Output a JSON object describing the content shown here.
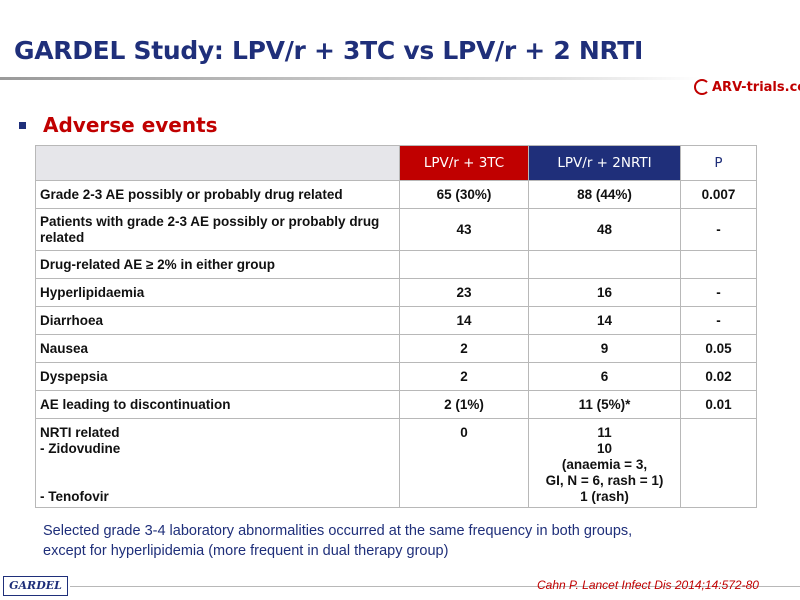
{
  "header": {
    "title": "GARDEL Study: LPV/r + 3TC vs LPV/r + 2 NRTI",
    "logo_text": "ARV-trials.com"
  },
  "section": {
    "heading": "Adverse events"
  },
  "table": {
    "columns": [
      "",
      "LPV/r + 3TC",
      "LPV/r + 2NRTI",
      "P"
    ],
    "header_colors": {
      "col1": "#c00000",
      "col2": "#1f2f7a",
      "p_text": "#1f2f7a"
    },
    "rows": [
      {
        "label": "Grade 2-3 AE possibly or probably drug related",
        "a": "65 (30%)",
        "b": "88 (44%)",
        "p": "0.007"
      },
      {
        "label": "Patients with grade 2-3 AE possibly or probably drug related",
        "a": "43",
        "b": "48",
        "p": "-"
      },
      {
        "label": "Drug-related AE ≥ 2% in either group",
        "a": "",
        "b": "",
        "p": ""
      },
      {
        "label": "Hyperlipidaemia",
        "a": "23",
        "b": "16",
        "p": "-"
      },
      {
        "label": "Diarrhoea",
        "a": "14",
        "b": "14",
        "p": "-"
      },
      {
        "label": "Nausea",
        "a": "2",
        "b": "9",
        "p": "0.05"
      },
      {
        "label": "Dyspepsia",
        "a": "2",
        "b": "6",
        "p": "0.02"
      },
      {
        "label": "AE leading to discontinuation",
        "a": "2 (1%)",
        "b": "11 (5%)*",
        "p": "0.01"
      }
    ],
    "last_row": {
      "label_lines": [
        "NRTI related",
        "- Zidovudine",
        "- Tenofovir"
      ],
      "a": "0",
      "b_lines": [
        "11",
        "10",
        "(anaemia = 3,",
        "GI, N = 6, rash = 1)",
        "1 (rash)"
      ],
      "p": ""
    }
  },
  "footnote": {
    "line1": "Selected grade 3-4 laboratory abnormalities occurred at the same frequency in both groups,",
    "line2": "except for hyperlipidemia (more frequent in dual therapy group)"
  },
  "footer": {
    "badge": "GARDEL",
    "citation": "Cahn P. Lancet Infect Dis 2014;14:572-80"
  }
}
